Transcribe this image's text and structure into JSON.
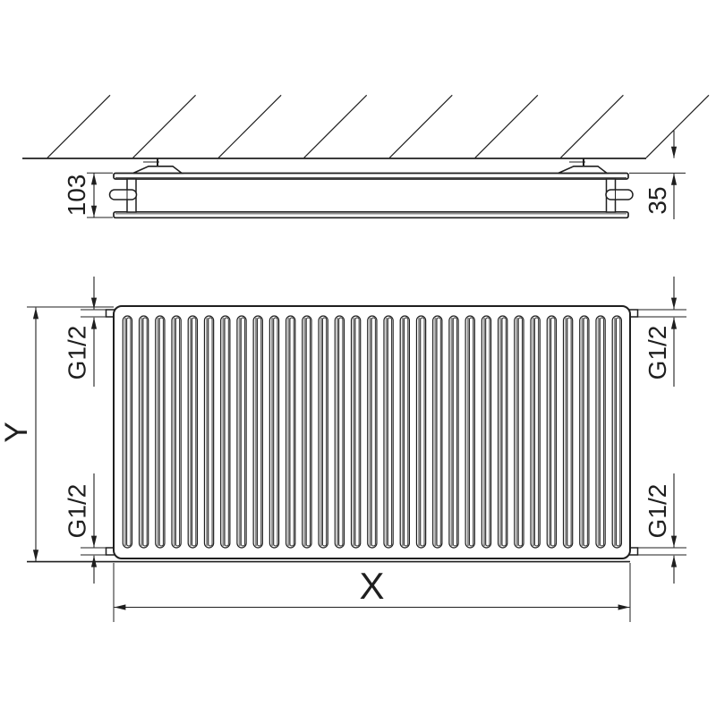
{
  "colors": {
    "line": "#1f1f1f",
    "background": "#ffffff",
    "fin_shade": "#8f8f8f"
  },
  "side_view": {
    "depth_dim": "103",
    "wall_distance_dim": "35",
    "hatch_line_count": 8,
    "bracket_count": 2
  },
  "front_view": {
    "height_dim": "Y",
    "width_dim": "X",
    "fin_count": 31,
    "connections": {
      "top_left": "G1/2",
      "top_right": "G1/2",
      "bottom_left": "G1/2",
      "bottom_right": "G1/2"
    }
  }
}
